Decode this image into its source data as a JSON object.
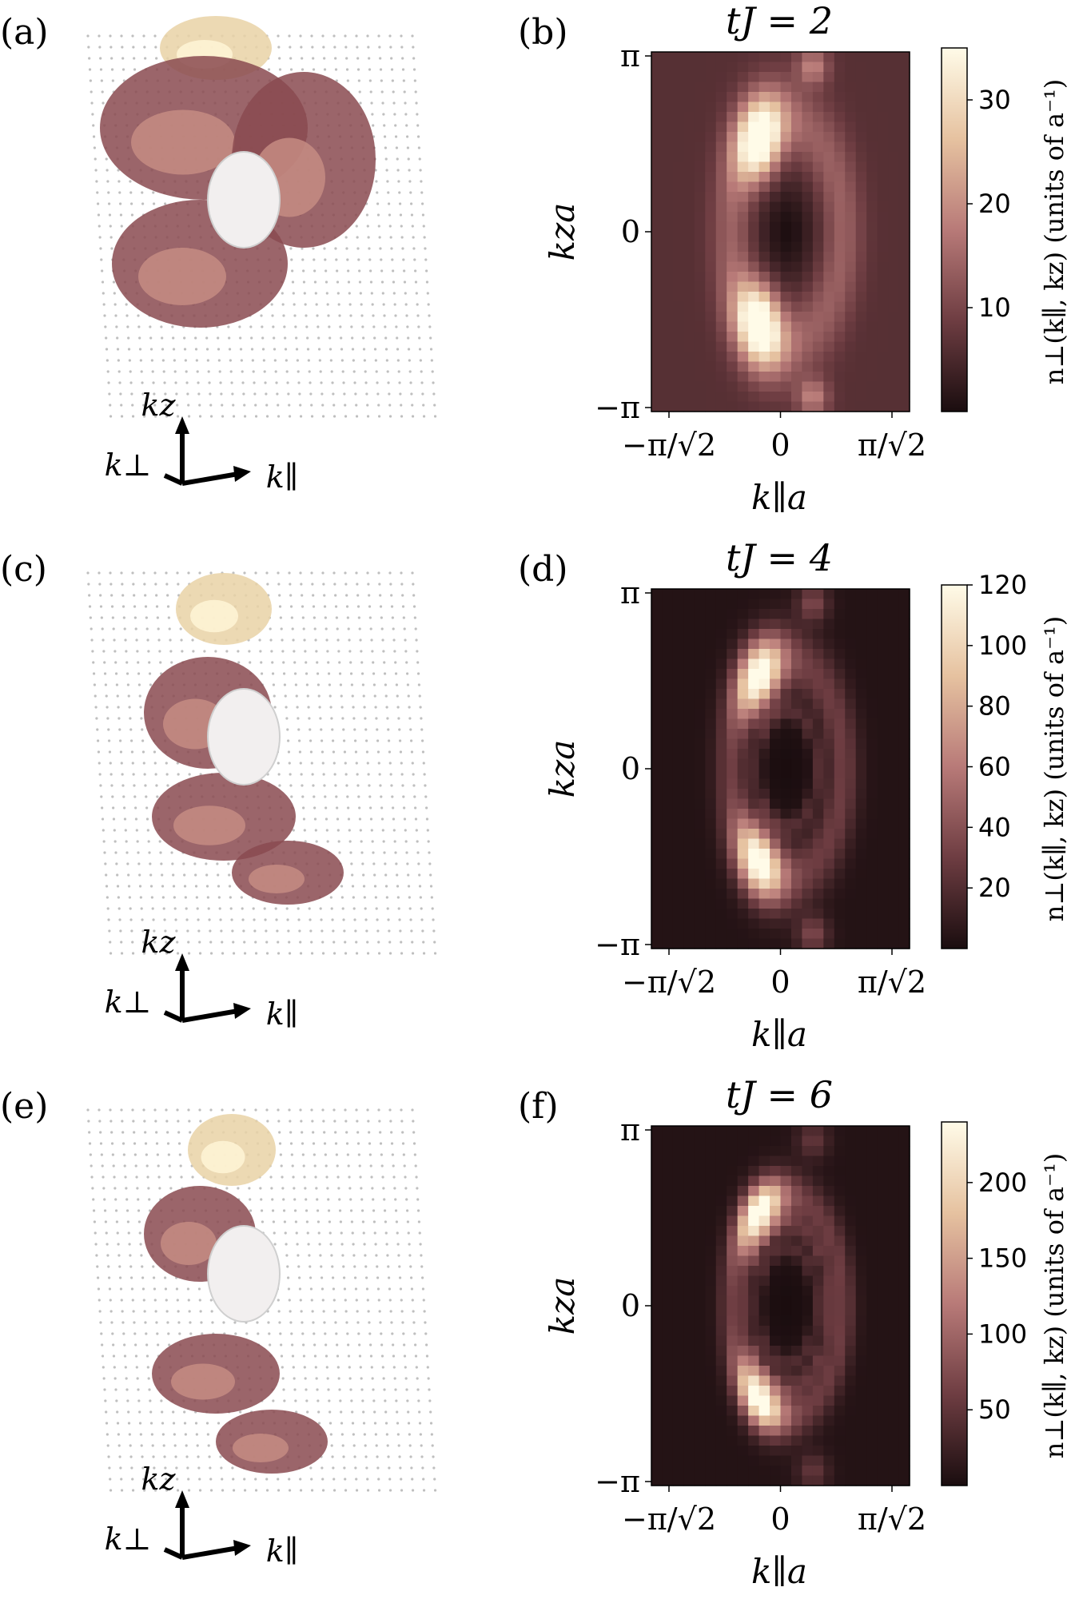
{
  "figure": {
    "rows": [
      {
        "label_left": "(a)",
        "label_right": "(b)",
        "title": "tJ = 2",
        "vmax": 35,
        "cb_max": 35,
        "cb_ticks": [
          "10",
          "20",
          "30"
        ],
        "cb_values": [
          10,
          20,
          30
        ],
        "phase": 0
      },
      {
        "label_left": "(c)",
        "label_right": "(d)",
        "title": "tJ = 4",
        "vmax": 120,
        "cb_max": 120,
        "cb_ticks": [
          "20",
          "40",
          "60",
          "80",
          "100",
          "120"
        ],
        "cb_values": [
          20,
          40,
          60,
          80,
          100,
          120
        ],
        "phase": 1
      },
      {
        "label_left": "(e)",
        "label_right": "(f)",
        "title": "tJ = 6",
        "vmax": 240,
        "cb_max": 240,
        "cb_ticks": [
          "50",
          "100",
          "150",
          "200"
        ],
        "cb_values": [
          50,
          100,
          150,
          200
        ],
        "phase": 2
      }
    ],
    "x_ticks": [
      "−π/√2",
      "0",
      "π/√2"
    ],
    "y_ticks": [
      "π",
      "0",
      "−π"
    ],
    "xlabel": "k∥a",
    "ylabel": "kza",
    "cb_label": "n⊥(k∥, kz) (units of a⁻¹)",
    "axis_labels_3d": {
      "z": "kz",
      "perp": "k⊥",
      "par": "k∥"
    }
  },
  "chart_data": [
    {
      "type": "heatmap",
      "title": "tJ = 2",
      "xlabel": "k∥a",
      "ylabel": "kza",
      "xlim": [
        "−π/√2",
        "π/√2"
      ],
      "ylim": [
        "−π",
        "π"
      ],
      "colorbar": {
        "label": "n⊥(k∥, kz) (units of a⁻¹)",
        "ticks": [
          10,
          20,
          30
        ],
        "range": [
          0,
          35
        ]
      }
    },
    {
      "type": "heatmap",
      "title": "tJ = 4",
      "xlabel": "k∥a",
      "ylabel": "kza",
      "xlim": [
        "−π/√2",
        "π/√2"
      ],
      "ylim": [
        "−π",
        "π"
      ],
      "colorbar": {
        "label": "n⊥(k∥, kz) (units of a⁻¹)",
        "ticks": [
          20,
          40,
          60,
          80,
          100,
          120
        ],
        "range": [
          0,
          120
        ]
      }
    },
    {
      "type": "heatmap",
      "title": "tJ = 6",
      "xlabel": "k∥a",
      "ylabel": "kza",
      "xlim": [
        "−π/√2",
        "π/√2"
      ],
      "ylim": [
        "−π",
        "π"
      ],
      "colorbar": {
        "label": "n⊥(k∥, kz) (units of a⁻¹)",
        "ticks": [
          50,
          100,
          150,
          200
        ],
        "range": [
          0,
          240
        ]
      }
    }
  ],
  "colors": {
    "low": "#1a0d0f",
    "mid": "#b87a78",
    "high": "#fffbe8"
  }
}
